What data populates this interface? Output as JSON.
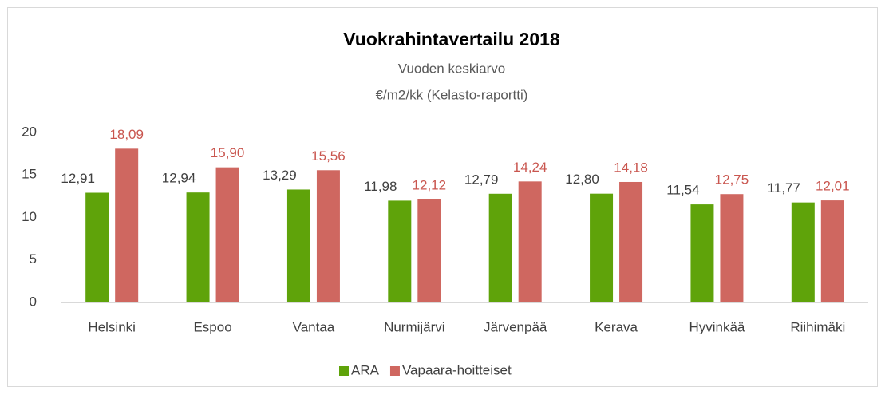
{
  "chart_data": {
    "type": "bar",
    "title": "Vuokrahintavertailu 2018",
    "subtitle": [
      "Vuoden keskiarvo",
      "€/m2/kk (Kelasto-raportti)"
    ],
    "categories": [
      "Helsinki",
      "Espoo",
      "Vantaa",
      "Nurmijärvi",
      "Järvenpää",
      "Kerava",
      "Hyvinkää",
      "Riihimäki"
    ],
    "series": [
      {
        "name": "ARA",
        "color": "#5fa30a",
        "label_color": "#404040",
        "values": [
          12.91,
          12.94,
          13.29,
          11.98,
          12.79,
          12.8,
          11.54,
          11.77
        ],
        "value_labels": [
          "12,91",
          "12,94",
          "13,29",
          "11,98",
          "12,79",
          "12,80",
          "11,54",
          "11,77"
        ]
      },
      {
        "name": "Vapaara-hoitteiset",
        "color": "#cf6760",
        "label_color": "#c9564f",
        "values": [
          18.09,
          15.9,
          15.56,
          12.12,
          14.24,
          14.18,
          12.75,
          12.01
        ],
        "value_labels": [
          "18,09",
          "15,90",
          "15,56",
          "12,12",
          "14,24",
          "14,18",
          "12,75",
          "12,01"
        ]
      }
    ],
    "ylim": [
      0,
      20
    ],
    "yticks": [
      0,
      5,
      10,
      15,
      20
    ],
    "grid": false,
    "legend": "bottom"
  }
}
